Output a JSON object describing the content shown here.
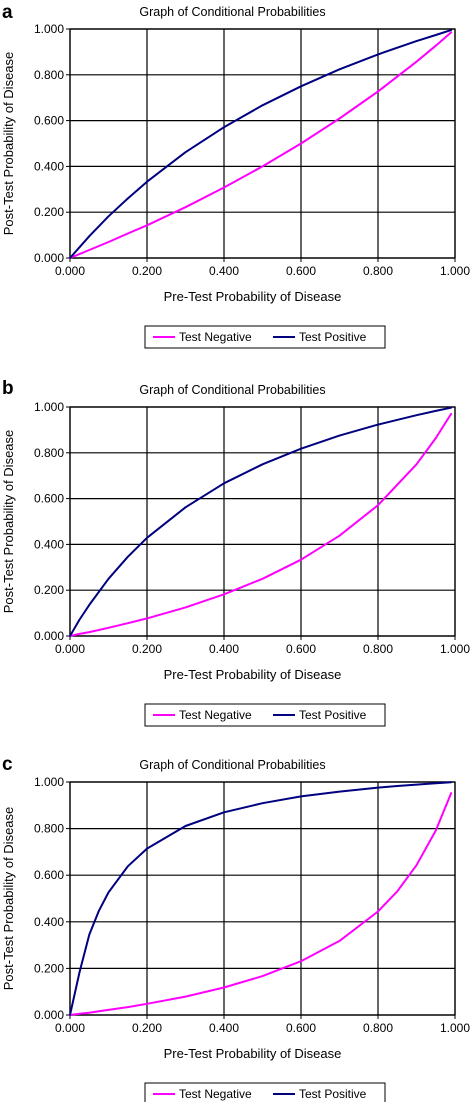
{
  "chart_data": [
    {
      "panel": "a",
      "type": "line",
      "title": "Graph of Conditional Probabilities",
      "xlabel": "Pre-Test Probability of Disease",
      "ylabel": "Post-Test Probability of Disease",
      "xlim": [
        0,
        1
      ],
      "ylim": [
        0,
        1
      ],
      "xticks": [
        "0.000",
        "0.200",
        "0.400",
        "0.600",
        "0.800",
        "1.000"
      ],
      "yticks": [
        "0.000",
        "0.200",
        "0.400",
        "0.600",
        "0.800",
        "1.000"
      ],
      "grid": true,
      "legend_position": "bottom",
      "x": [
        0,
        0.05,
        0.1,
        0.15,
        0.2,
        0.3,
        0.4,
        0.5,
        0.6,
        0.7,
        0.8,
        0.9,
        0.95,
        0.99
      ],
      "series": [
        {
          "name": "Test Negative",
          "color": "#ff00ff",
          "values": [
            0,
            0.035,
            0.07,
            0.107,
            0.143,
            0.222,
            0.308,
            0.4,
            0.5,
            0.609,
            0.727,
            0.857,
            0.927,
            0.985
          ]
        },
        {
          "name": "Test Positive",
          "color": "#000080",
          "values": [
            0,
            0.095,
            0.182,
            0.26,
            0.333,
            0.462,
            0.571,
            0.667,
            0.75,
            0.824,
            0.889,
            0.947,
            0.974,
            0.995
          ]
        }
      ]
    },
    {
      "panel": "b",
      "type": "line",
      "title": "Graph of Conditional Probabilities",
      "xlabel": "Pre-Test Probability of Disease",
      "ylabel": "Post-Test Probability of Disease",
      "xlim": [
        0,
        1
      ],
      "ylim": [
        0,
        1
      ],
      "xticks": [
        "0.000",
        "0.200",
        "0.400",
        "0.600",
        "0.800",
        "1.000"
      ],
      "yticks": [
        "0.000",
        "0.200",
        "0.400",
        "0.600",
        "0.800",
        "1.000"
      ],
      "grid": true,
      "legend_position": "bottom",
      "x": [
        0,
        0.025,
        0.05,
        0.1,
        0.15,
        0.2,
        0.3,
        0.4,
        0.5,
        0.6,
        0.7,
        0.8,
        0.9,
        0.95,
        0.99
      ],
      "series": [
        {
          "name": "Test Negative",
          "color": "#ff00ff",
          "values": [
            0,
            0.009,
            0.017,
            0.036,
            0.056,
            0.077,
            0.125,
            0.182,
            0.25,
            0.333,
            0.438,
            0.571,
            0.75,
            0.864,
            0.97
          ]
        },
        {
          "name": "Test Positive",
          "color": "#000080",
          "values": [
            0,
            0.072,
            0.136,
            0.25,
            0.346,
            0.429,
            0.562,
            0.667,
            0.75,
            0.818,
            0.875,
            0.923,
            0.964,
            0.983,
            0.997
          ]
        }
      ]
    },
    {
      "panel": "c",
      "type": "line",
      "title": "Graph of Conditional Probabilities",
      "xlabel": "Pre-Test Probability of Disease",
      "ylabel": "Post-Test Probability of Disease",
      "xlim": [
        0,
        1
      ],
      "ylim": [
        0,
        1
      ],
      "xticks": [
        "0.000",
        "0.200",
        "0.400",
        "0.600",
        "0.800",
        "1.000"
      ],
      "yticks": [
        "0.000",
        "0.200",
        "0.400",
        "0.600",
        "0.800",
        "1.000"
      ],
      "grid": true,
      "legend_position": "bottom",
      "x": [
        0,
        0.025,
        0.05,
        0.075,
        0.1,
        0.15,
        0.2,
        0.3,
        0.4,
        0.5,
        0.6,
        0.7,
        0.8,
        0.85,
        0.9,
        0.95,
        0.99
      ],
      "series": [
        {
          "name": "Test Negative",
          "color": "#ff00ff",
          "values": [
            0,
            0.005,
            0.01,
            0.016,
            0.022,
            0.034,
            0.048,
            0.079,
            0.118,
            0.167,
            0.231,
            0.318,
            0.444,
            0.531,
            0.643,
            0.792,
            0.952
          ]
        },
        {
          "name": "Test Positive",
          "color": "#000080",
          "values": [
            0,
            0.185,
            0.345,
            0.447,
            0.526,
            0.638,
            0.714,
            0.811,
            0.87,
            0.909,
            0.938,
            0.959,
            0.976,
            0.983,
            0.989,
            0.995,
            0.999
          ]
        }
      ]
    }
  ]
}
